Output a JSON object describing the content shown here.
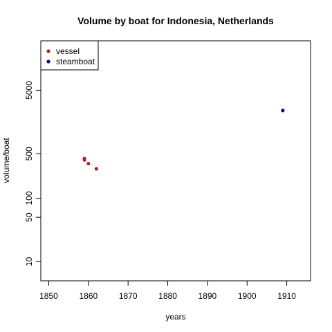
{
  "chart_data": {
    "type": "scatter",
    "title": "Volume by boat for Indonesia, Netherlands",
    "xlabel": "years",
    "ylabel": "volume/boat",
    "xlim": [
      1848,
      1916
    ],
    "ylim": [
      5,
      30000
    ],
    "yscale": "log",
    "xticks": [
      1850,
      1860,
      1870,
      1880,
      1890,
      1900,
      1910
    ],
    "yticks": [
      10,
      50,
      100,
      500,
      5000
    ],
    "legend_position": "top-left",
    "grid": false,
    "series": [
      {
        "name": "vessel",
        "color": "#b22222",
        "x": [
          1859,
          1859,
          1860,
          1862
        ],
        "y": [
          420,
          400,
          350,
          290
        ]
      },
      {
        "name": "steamboat",
        "color": "#00008b",
        "x": [
          1909
        ],
        "y": [
          2400
        ]
      }
    ]
  }
}
